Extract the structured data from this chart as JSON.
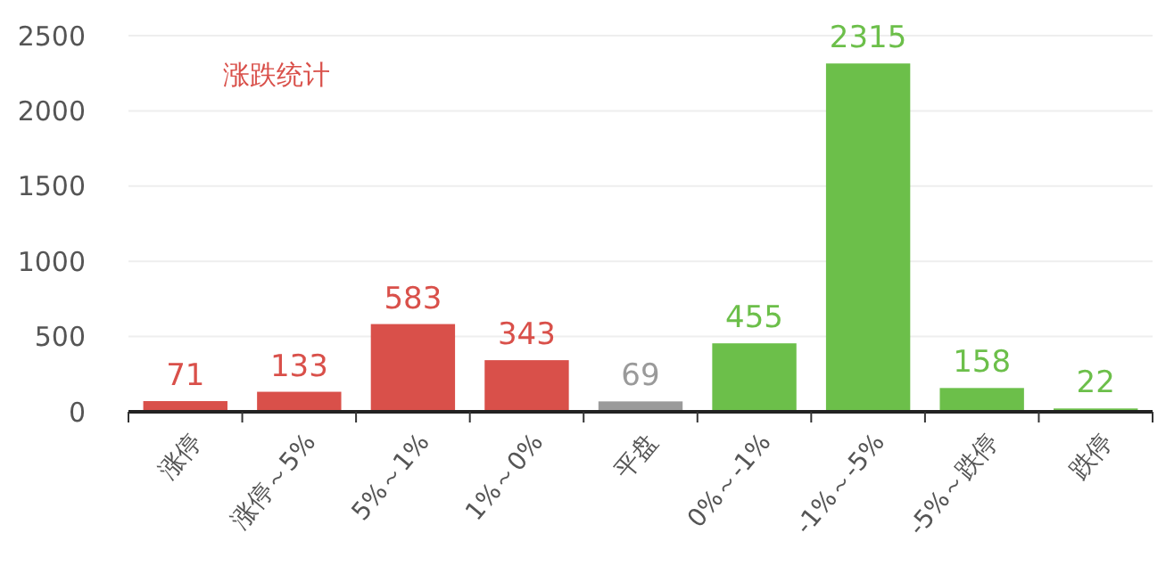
{
  "chart_data": {
    "type": "bar",
    "title": "涨跌统计",
    "categories": [
      "涨停",
      "涨停～5%",
      "5%～1%",
      "1%～0%",
      "平盘",
      "0%～-1%",
      "-1%～-5%",
      "-5%～跌停",
      "跌停"
    ],
    "values": [
      71,
      133,
      583,
      343,
      69,
      455,
      2315,
      158,
      22
    ],
    "colors": [
      "#d9504a",
      "#d9504a",
      "#d9504a",
      "#d9504a",
      "#9a9a9a",
      "#6cbf4a",
      "#6cbf4a",
      "#6cbf4a",
      "#6cbf4a"
    ],
    "ylim": [
      0,
      2500
    ],
    "yticks": [
      0,
      500,
      1000,
      1500,
      2000,
      2500
    ],
    "grid": "y",
    "data_labels": true
  }
}
